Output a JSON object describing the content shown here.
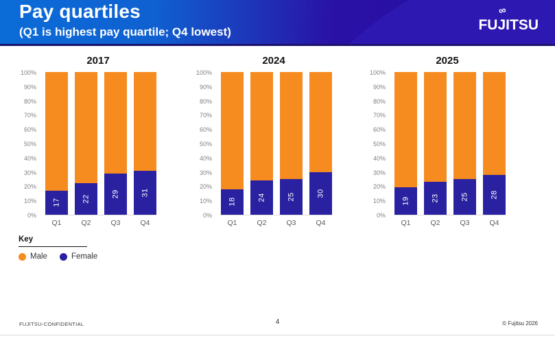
{
  "header": {
    "title": "Pay quartiles",
    "subtitle": "(Q1 is highest pay quartile; Q4 lowest)",
    "logo_text": "FUJITSU",
    "gradient_left": "#0b6cd8",
    "gradient_right": "#270ea2"
  },
  "colors": {
    "male": "#f68b1f",
    "female": "#2a21a0",
    "axis_label": "#808080",
    "baseline": "#d9d9d9"
  },
  "chart_data": [
    {
      "type": "bar",
      "stacked": true,
      "title": "2017",
      "categories": [
        "Q1",
        "Q2",
        "Q3",
        "Q4"
      ],
      "series": [
        {
          "name": "Female",
          "color": "#2a21a0",
          "values": [
            17,
            22,
            29,
            31
          ]
        },
        {
          "name": "Male",
          "color": "#f68b1f",
          "values": [
            83,
            78,
            71,
            69
          ]
        }
      ],
      "value_labels_shown": [
        17,
        22,
        29,
        31
      ],
      "ylim": [
        0,
        100
      ],
      "yticks": [
        "100%",
        "90%",
        "80%",
        "70%",
        "60%",
        "50%",
        "40%",
        "30%",
        "20%",
        "10%",
        "0%"
      ],
      "grid": false
    },
    {
      "type": "bar",
      "stacked": true,
      "title": "2024",
      "categories": [
        "Q1",
        "Q2",
        "Q3",
        "Q4"
      ],
      "series": [
        {
          "name": "Female",
          "color": "#2a21a0",
          "values": [
            18,
            24,
            25,
            30
          ]
        },
        {
          "name": "Male",
          "color": "#f68b1f",
          "values": [
            82,
            76,
            75,
            70
          ]
        }
      ],
      "value_labels_shown": [
        18,
        24,
        25,
        30
      ],
      "ylim": [
        0,
        100
      ],
      "yticks": [
        "100%",
        "90%",
        "80%",
        "70%",
        "60%",
        "50%",
        "40%",
        "30%",
        "20%",
        "10%",
        "0%"
      ],
      "grid": false
    },
    {
      "type": "bar",
      "stacked": true,
      "title": "2025",
      "categories": [
        "Q1",
        "Q2",
        "Q3",
        "Q4"
      ],
      "series": [
        {
          "name": "Female",
          "color": "#2a21a0",
          "values": [
            19,
            23,
            25,
            28
          ]
        },
        {
          "name": "Male",
          "color": "#f68b1f",
          "values": [
            81,
            77,
            75,
            72
          ]
        }
      ],
      "value_labels_shown": [
        19,
        23,
        25,
        28
      ],
      "ylim": [
        0,
        100
      ],
      "yticks": [
        "100%",
        "90%",
        "80%",
        "70%",
        "60%",
        "50%",
        "40%",
        "30%",
        "20%",
        "10%",
        "0%"
      ],
      "grid": false
    }
  ],
  "key": {
    "title": "Key",
    "items": [
      {
        "label": "Male",
        "color": "#f68b1f"
      },
      {
        "label": "Female",
        "color": "#2a21a0"
      }
    ]
  },
  "footer": {
    "left": "FUJITSU-CONFIDENTIAL",
    "page": "4",
    "right": "© Fujitsu 2026"
  }
}
